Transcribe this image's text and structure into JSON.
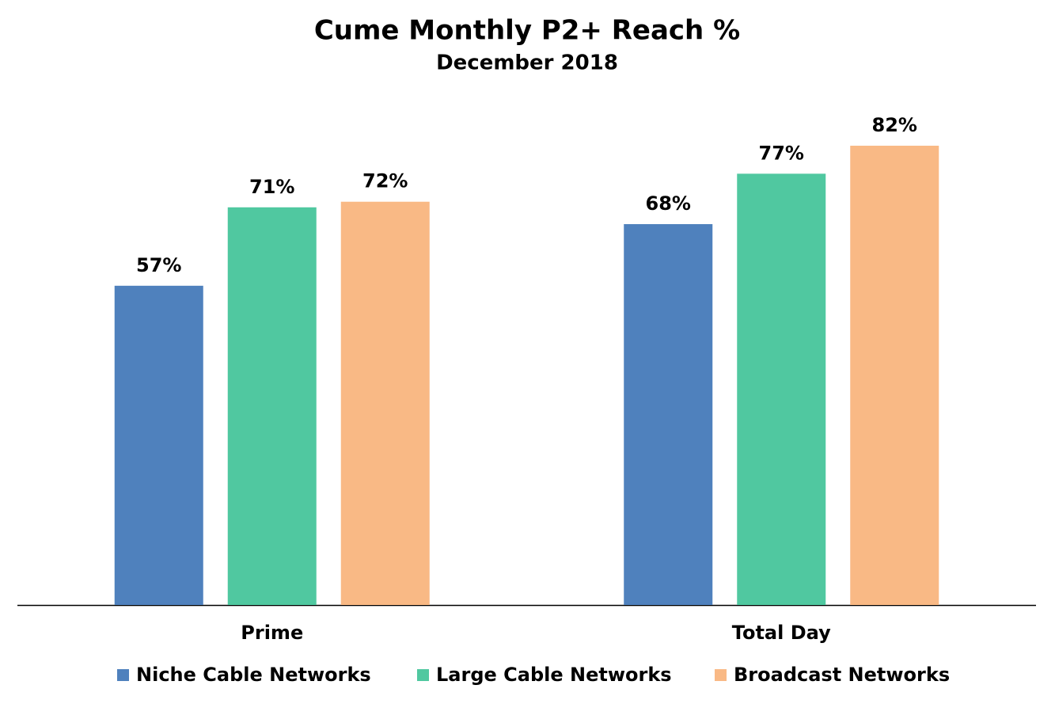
{
  "chart_data": {
    "type": "bar",
    "title": "Cume Monthly P2+ Reach %",
    "subtitle": "December 2018",
    "categories": [
      "Prime",
      "Total Day"
    ],
    "series": [
      {
        "name": "Niche Cable Networks",
        "color": "#4f81bd",
        "values": [
          57,
          68
        ],
        "value_labels": [
          "57%",
          "68%"
        ]
      },
      {
        "name": "Large Cable Networks",
        "color": "#50c8a0",
        "values": [
          71,
          77
        ],
        "value_labels": [
          "71%",
          "77%"
        ]
      },
      {
        "name": "Broadcast Networks",
        "color": "#f9b985",
        "values": [
          72,
          82
        ],
        "value_labels": [
          "72%",
          "82%"
        ]
      }
    ]
  }
}
